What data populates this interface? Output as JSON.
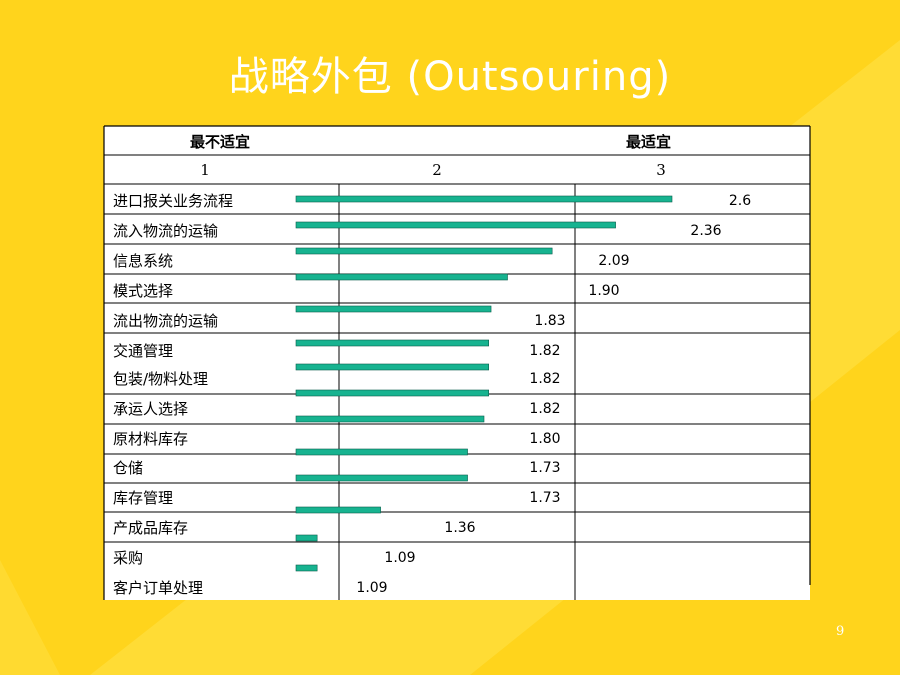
{
  "slide": {
    "title": "战略外包 (Outsouring)",
    "page_number": "9",
    "colors": {
      "background": "#FFD41C",
      "background_stripe": "#FFE24A",
      "bar": "#17B390",
      "title": "#FFFFFF"
    }
  },
  "chart_data": {
    "type": "bar",
    "orientation": "horizontal",
    "header_left": "最不适宜",
    "header_right": "最适宜",
    "x_ticks": [
      "1",
      "2",
      "3"
    ],
    "xlim": [
      1,
      3
    ],
    "grid": true,
    "categories": [
      "进口报关业务流程",
      "流入物流的运输",
      "信息系统",
      "模式选择",
      "流出物流的运输",
      "交通管理",
      "包装/物料处理",
      "承运人选择",
      "原材料库存",
      "仓储",
      "库存管理",
      "产成品库存",
      "采购",
      "客户订单处理"
    ],
    "values": [
      2.6,
      2.36,
      2.09,
      1.9,
      1.83,
      1.82,
      1.82,
      1.82,
      1.8,
      1.73,
      1.73,
      1.36,
      1.09,
      1.09
    ],
    "value_labels": [
      "2.6",
      "2.36",
      "2.09",
      "1.90",
      "1.83",
      "1.82",
      "1.82",
      "1.82",
      "1.80",
      "1.73",
      "1.73",
      "1.36",
      "1.09",
      "1.09"
    ]
  }
}
